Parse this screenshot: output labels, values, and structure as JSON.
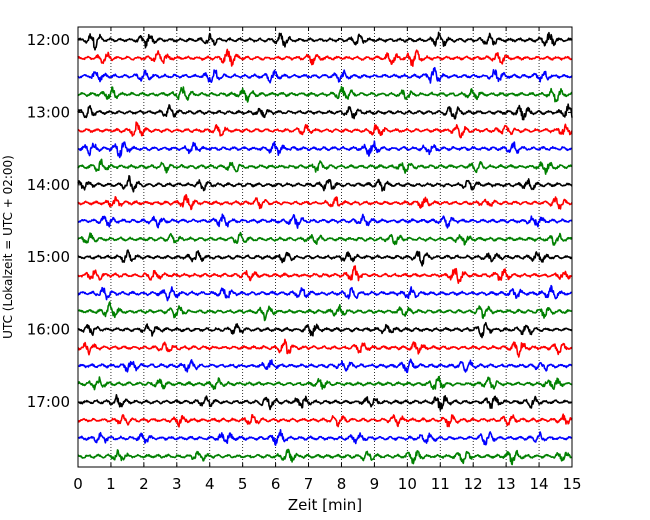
{
  "chart_data": {
    "type": "line",
    "subtype": "helicorder",
    "xlabel": "Zeit  [min]",
    "ylabel": "UTC (Lokalzeit = UTC + 02:00)",
    "xlim": [
      0,
      15
    ],
    "x_ticks": [
      0,
      1,
      2,
      3,
      4,
      5,
      6,
      7,
      8,
      9,
      10,
      11,
      12,
      13,
      14,
      15
    ],
    "x_tick_labels": [
      "0",
      "1",
      "2",
      "3",
      "4",
      "5",
      "6",
      "7",
      "8",
      "9",
      "10",
      "11",
      "12",
      "13",
      "14",
      "15"
    ],
    "y_tick_labels": [
      "12:00",
      "13:00",
      "14:00",
      "15:00",
      "16:00",
      "17:00"
    ],
    "y_tick_trace_index": [
      0,
      4,
      8,
      12,
      16,
      20
    ],
    "row_count": 24,
    "minutes_per_row": 15,
    "vertical_grid": "dotted",
    "trace_colors": [
      "#000000",
      "#ff0000",
      "#0000ff",
      "#008000"
    ],
    "bursts": [
      [
        [
          0.5,
          1.0
        ],
        [
          2.1,
          0.9
        ],
        [
          4.0,
          0.7
        ],
        [
          6.2,
          0.8
        ],
        [
          8.5,
          0.7
        ],
        [
          11.0,
          1.0
        ],
        [
          12.5,
          0.8
        ],
        [
          14.3,
          0.9
        ]
      ],
      [
        [
          0.8,
          0.7
        ],
        [
          2.5,
          0.8
        ],
        [
          4.6,
          1.0
        ],
        [
          7.1,
          0.6
        ],
        [
          9.5,
          0.7
        ],
        [
          10.2,
          1.0
        ],
        [
          12.8,
          0.6
        ]
      ],
      [
        [
          0.6,
          0.6
        ],
        [
          2.0,
          0.6
        ],
        [
          4.1,
          0.9
        ],
        [
          5.9,
          0.7
        ],
        [
          8.0,
          0.6
        ],
        [
          10.8,
          1.0
        ],
        [
          12.7,
          0.8
        ],
        [
          14.1,
          0.7
        ]
      ],
      [
        [
          1.0,
          0.7
        ],
        [
          3.2,
          1.0
        ],
        [
          5.1,
          0.8
        ],
        [
          8.1,
          1.0
        ],
        [
          10.0,
          0.7
        ],
        [
          12.0,
          0.6
        ],
        [
          14.5,
          1.0
        ]
      ],
      [
        [
          0.3,
          0.7
        ],
        [
          2.8,
          0.9
        ],
        [
          5.6,
          0.6
        ],
        [
          8.3,
          0.7
        ],
        [
          11.4,
          0.8
        ],
        [
          13.5,
          0.9
        ],
        [
          14.9,
          1.0
        ]
      ],
      [
        [
          1.8,
          0.9
        ],
        [
          4.3,
          0.7
        ],
        [
          6.9,
          0.6
        ],
        [
          9.1,
          0.8
        ],
        [
          11.6,
          0.7
        ],
        [
          13.0,
          0.8
        ],
        [
          14.8,
          0.7
        ]
      ],
      [
        [
          0.4,
          0.7
        ],
        [
          1.3,
          1.0
        ],
        [
          3.5,
          0.6
        ],
        [
          6.0,
          0.8
        ],
        [
          8.9,
          1.0
        ],
        [
          10.7,
          0.6
        ],
        [
          13.2,
          0.7
        ]
      ],
      [
        [
          0.7,
          0.8
        ],
        [
          2.6,
          0.6
        ],
        [
          4.7,
          0.7
        ],
        [
          7.3,
          0.6
        ],
        [
          9.9,
          0.7
        ],
        [
          12.1,
          0.6
        ],
        [
          14.2,
          0.7
        ]
      ],
      [
        [
          0.2,
          0.6
        ],
        [
          1.6,
          1.0
        ],
        [
          3.8,
          0.6
        ],
        [
          7.6,
          0.9
        ],
        [
          9.2,
          0.7
        ],
        [
          11.9,
          0.6
        ],
        [
          13.7,
          0.7
        ]
      ],
      [
        [
          1.1,
          0.6
        ],
        [
          3.3,
          0.9
        ],
        [
          5.5,
          0.6
        ],
        [
          7.8,
          0.7
        ],
        [
          10.5,
          0.7
        ],
        [
          12.4,
          0.6
        ],
        [
          14.6,
          0.8
        ]
      ],
      [
        [
          0.9,
          0.6
        ],
        [
          2.4,
          0.6
        ],
        [
          4.4,
          0.9
        ],
        [
          6.6,
          0.8
        ],
        [
          8.7,
          0.6
        ],
        [
          11.2,
          0.6
        ],
        [
          13.9,
          0.8
        ]
      ],
      [
        [
          0.3,
          0.7
        ],
        [
          2.9,
          0.6
        ],
        [
          4.9,
          0.7
        ],
        [
          7.2,
          0.7
        ],
        [
          9.6,
          0.6
        ],
        [
          11.7,
          0.6
        ],
        [
          14.5,
          0.9
        ]
      ],
      [
        [
          1.5,
          0.7
        ],
        [
          3.6,
          0.6
        ],
        [
          6.3,
          0.6
        ],
        [
          8.2,
          0.7
        ],
        [
          10.4,
          0.9
        ],
        [
          12.6,
          0.6
        ],
        [
          14.0,
          0.7
        ]
      ],
      [
        [
          0.5,
          0.7
        ],
        [
          2.3,
          0.7
        ],
        [
          5.2,
          0.6
        ],
        [
          8.4,
          1.0
        ],
        [
          11.5,
          1.0
        ],
        [
          12.9,
          0.8
        ],
        [
          14.7,
          0.6
        ]
      ],
      [
        [
          0.8,
          0.7
        ],
        [
          2.8,
          0.9
        ],
        [
          4.5,
          0.7
        ],
        [
          6.8,
          0.6
        ],
        [
          8.3,
          0.8
        ],
        [
          10.1,
          0.7
        ],
        [
          13.3,
          0.6
        ],
        [
          14.4,
          0.8
        ]
      ],
      [
        [
          1.0,
          1.0
        ],
        [
          3.0,
          0.8
        ],
        [
          5.7,
          0.9
        ],
        [
          7.9,
          0.7
        ],
        [
          9.9,
          0.6
        ],
        [
          12.3,
          0.8
        ],
        [
          14.2,
          0.6
        ]
      ],
      [
        [
          0.4,
          0.6
        ],
        [
          2.2,
          0.7
        ],
        [
          4.8,
          0.6
        ],
        [
          7.1,
          0.7
        ],
        [
          9.4,
          0.6
        ],
        [
          12.3,
          0.9
        ],
        [
          13.6,
          0.7
        ]
      ],
      [
        [
          0.3,
          0.8
        ],
        [
          2.7,
          0.6
        ],
        [
          6.3,
          1.0
        ],
        [
          8.6,
          0.6
        ],
        [
          10.3,
          0.7
        ],
        [
          13.4,
          1.0
        ],
        [
          14.6,
          0.6
        ]
      ],
      [
        [
          1.6,
          0.8
        ],
        [
          3.4,
          0.7
        ],
        [
          5.8,
          0.6
        ],
        [
          8.1,
          0.6
        ],
        [
          10.0,
          0.8
        ],
        [
          11.8,
          0.7
        ],
        [
          14.1,
          0.6
        ]
      ],
      [
        [
          0.6,
          0.7
        ],
        [
          2.5,
          0.6
        ],
        [
          4.2,
          0.6
        ],
        [
          7.4,
          0.6
        ],
        [
          10.9,
          1.0
        ],
        [
          12.5,
          0.7
        ],
        [
          14.4,
          1.0
        ]
      ],
      [
        [
          1.2,
          0.7
        ],
        [
          3.9,
          0.6
        ],
        [
          5.8,
          0.8
        ],
        [
          6.8,
          0.7
        ],
        [
          8.9,
          0.8
        ],
        [
          11.0,
          1.0
        ],
        [
          12.6,
          0.8
        ],
        [
          13.8,
          0.6
        ]
      ],
      [
        [
          1.4,
          0.6
        ],
        [
          3.1,
          0.7
        ],
        [
          5.3,
          0.6
        ],
        [
          7.9,
          0.7
        ],
        [
          9.7,
          0.6
        ],
        [
          11.3,
          0.7
        ],
        [
          13.1,
          0.6
        ],
        [
          14.8,
          0.6
        ]
      ],
      [
        [
          0.7,
          0.6
        ],
        [
          2.0,
          0.6
        ],
        [
          4.5,
          0.8
        ],
        [
          6.1,
          0.9
        ],
        [
          8.5,
          0.6
        ],
        [
          10.6,
          0.7
        ],
        [
          12.4,
          0.8
        ],
        [
          14.0,
          0.6
        ]
      ],
      [
        [
          1.3,
          0.8
        ],
        [
          3.7,
          0.6
        ],
        [
          6.4,
          0.7
        ],
        [
          8.8,
          0.6
        ],
        [
          10.2,
          0.8
        ],
        [
          11.7,
          0.7
        ],
        [
          13.2,
          0.9
        ],
        [
          14.7,
          0.6
        ]
      ]
    ]
  }
}
